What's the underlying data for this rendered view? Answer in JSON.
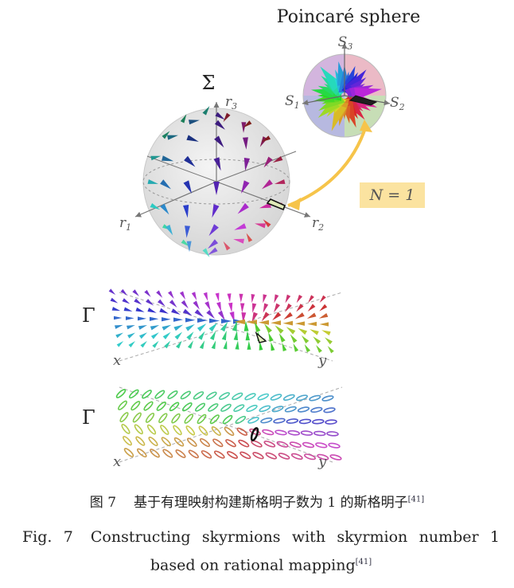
{
  "figure": {
    "poincare_title": "Poincaré sphere",
    "s3": "S",
    "s3_sub": "3",
    "s1": "S",
    "s1_sub": "1",
    "s2": "S",
    "s2_sub": "2",
    "sigma": "Σ",
    "r3": "r",
    "r3_sub": "3",
    "r1": "r",
    "r1_sub": "1",
    "r2": "r",
    "r2_sub": "2",
    "n_label": "N = 1",
    "gamma_top": "Γ",
    "gamma_bottom": "Γ",
    "x_top": "x",
    "y_top": "y",
    "x_bottom": "x",
    "y_bottom": "y"
  },
  "caption": {
    "zh_label": "图 7",
    "zh_text": "基于有理映射构建斯格明子数为 1 的斯格明子",
    "zh_ref": "[41]",
    "en_label": "Fig. 7",
    "en_text": "Constructing skyrmions with skyrmion number 1 based on rational mapping",
    "en_ref": "[41]"
  },
  "colors": {
    "accent_yellow": "#f6c44a",
    "label_box": "#fbe3a0",
    "purple": "#8a3fb0",
    "blue": "#2a3fa8",
    "red": "#d9283c",
    "green": "#6fa84a"
  }
}
